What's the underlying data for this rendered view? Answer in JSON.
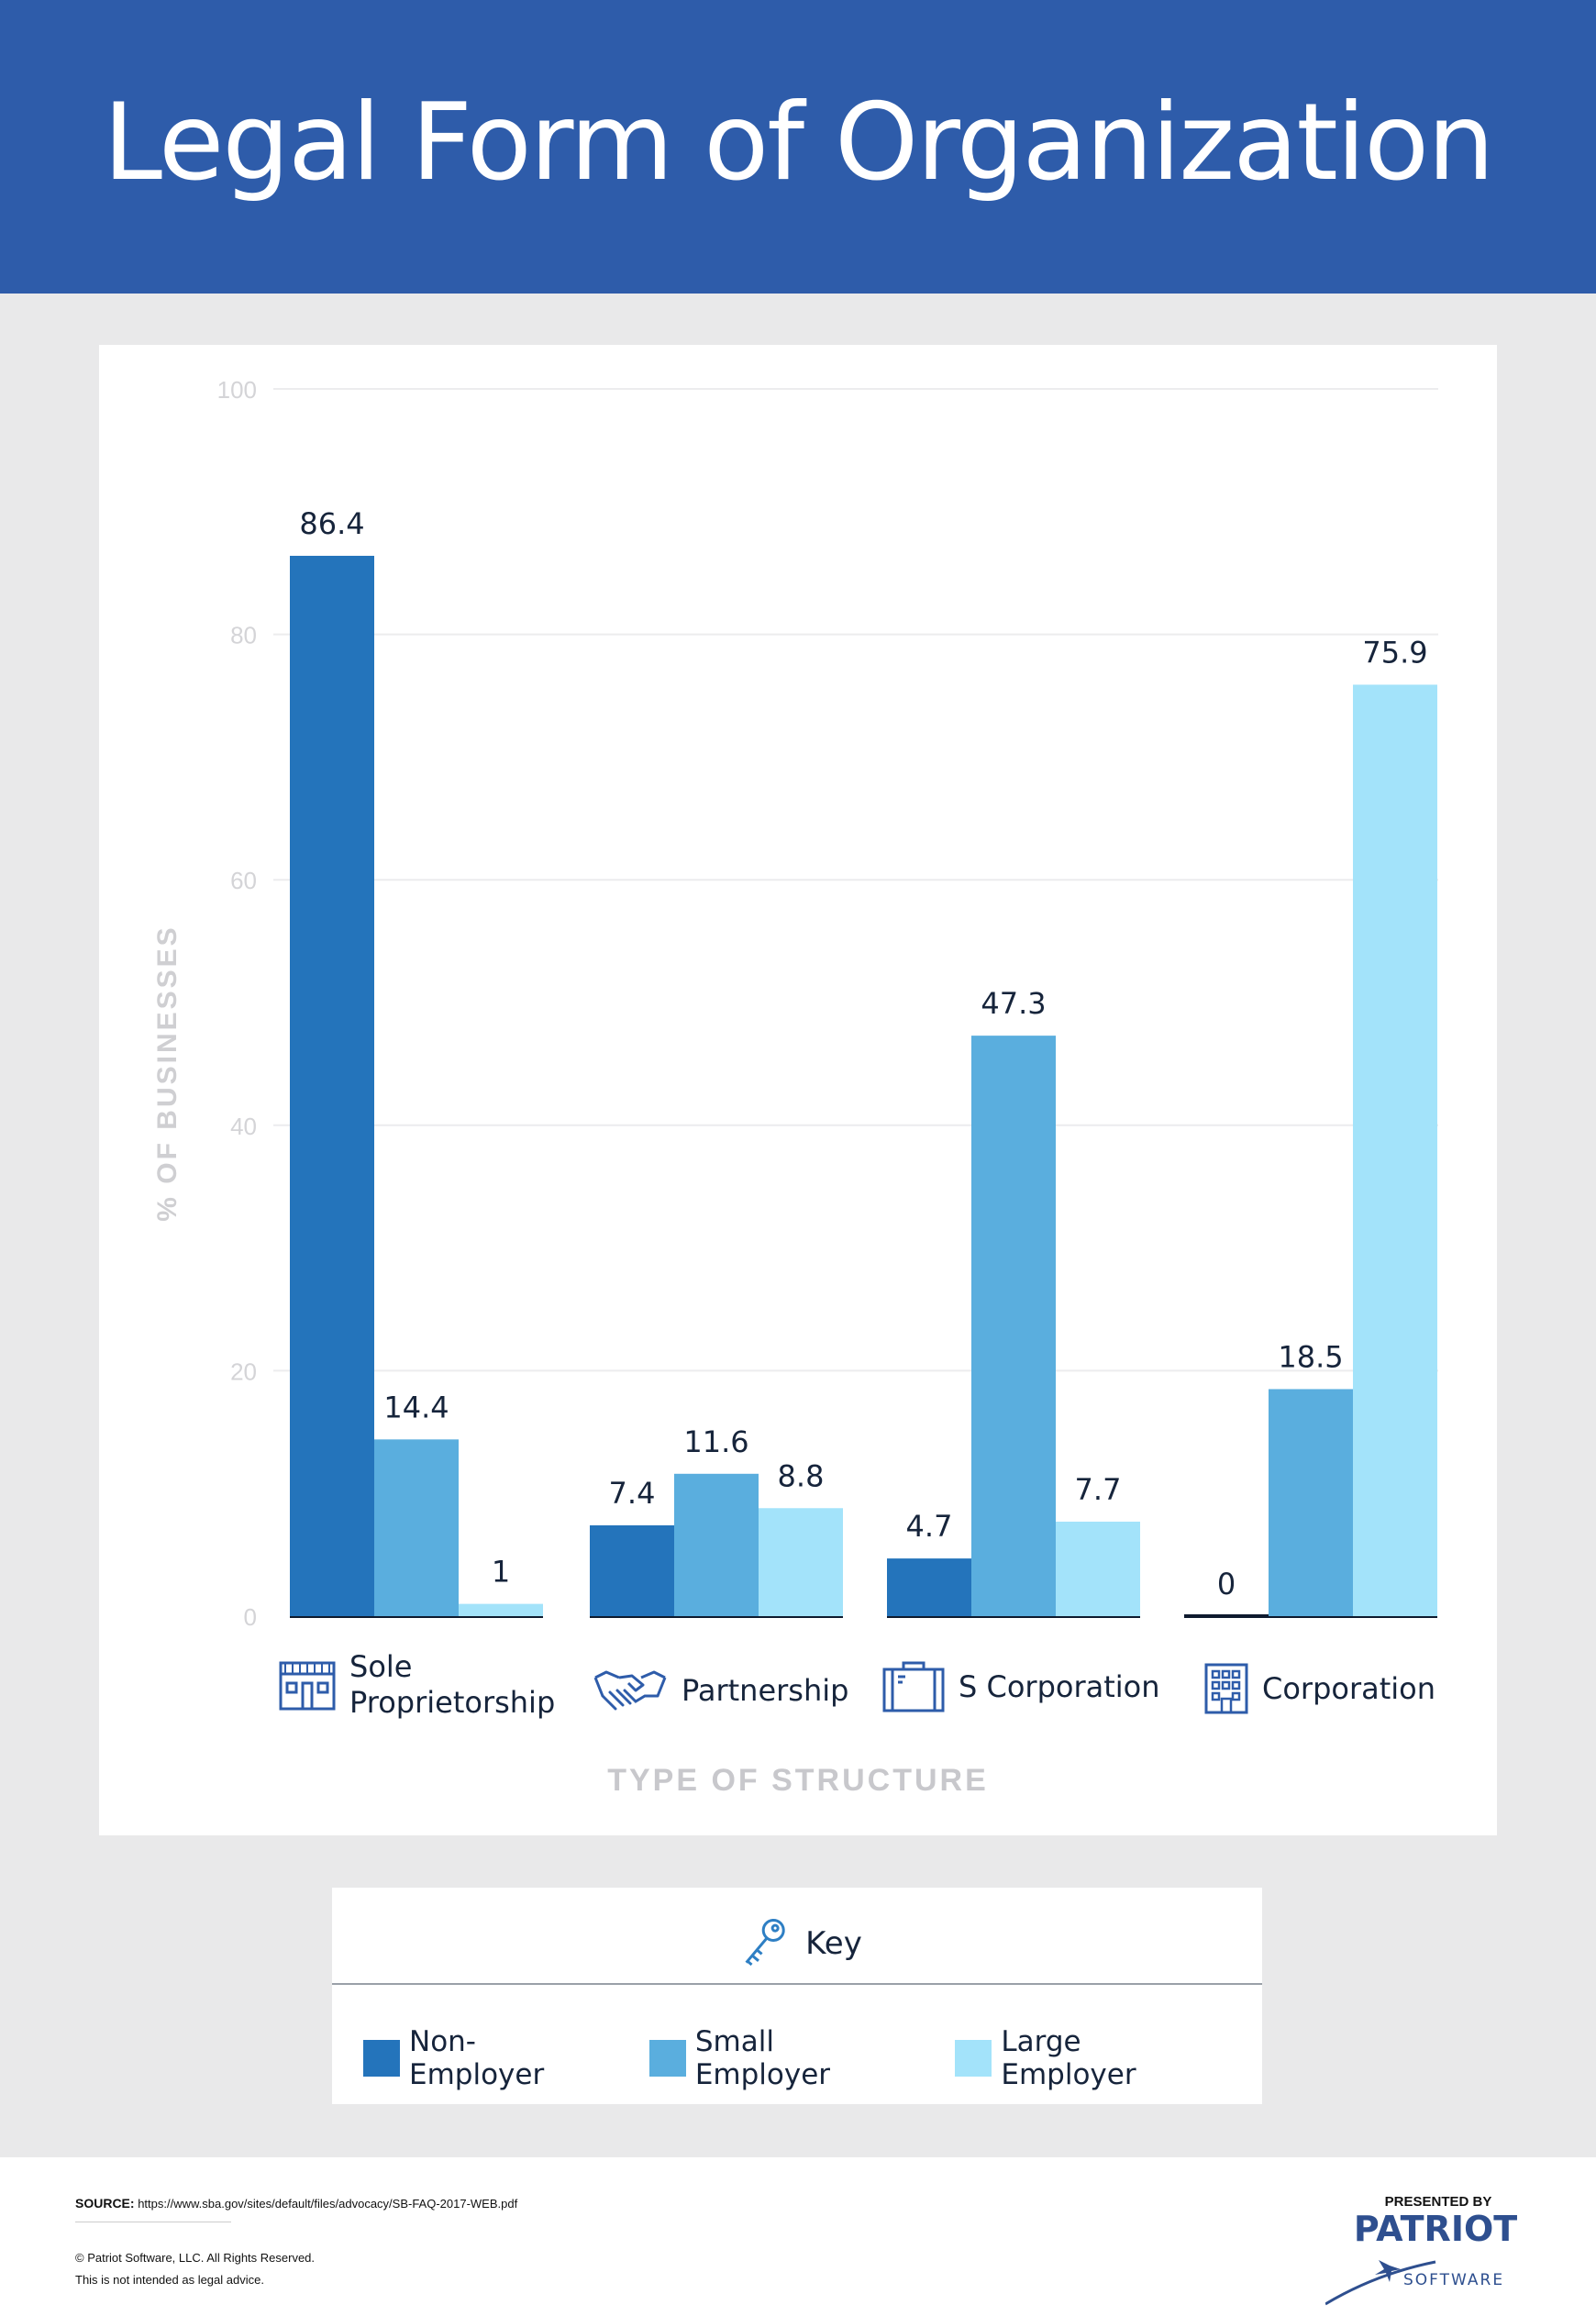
{
  "header": {
    "title": "Legal Form of Organization"
  },
  "colors": {
    "non_employer": "#2474bb",
    "small_employer": "#5aaede",
    "large_employer": "#a3e3fa",
    "header_bg": "#2e5caa"
  },
  "chart_data": {
    "type": "bar",
    "title": "Legal Form of Organization",
    "xlabel": "TYPE OF STRUCTURE",
    "ylabel": "% OF BUSINESSES",
    "ylim": [
      0,
      100
    ],
    "yticks": [
      0,
      20,
      40,
      60,
      80,
      100
    ],
    "grid": true,
    "legend_placement": "bottom",
    "categories": [
      "Sole Proprietorship",
      "Partnership",
      "S Corporation",
      "Corporation"
    ],
    "category_icons": [
      "storefront-icon",
      "handshake-icon",
      "briefcase-icon",
      "office-building-icon"
    ],
    "series": [
      {
        "name": "Non-Employer",
        "values": [
          86.4,
          7.4,
          4.7,
          0
        ]
      },
      {
        "name": "Small Employer",
        "values": [
          14.4,
          11.6,
          47.3,
          18.5
        ]
      },
      {
        "name": "Large Employer",
        "values": [
          1,
          8.8,
          7.7,
          75.9
        ]
      }
    ]
  },
  "key": {
    "title": "Key",
    "icon": "key-icon",
    "items": [
      {
        "label": "Non-Employer",
        "color": "#2474bb"
      },
      {
        "label": "Small Employer",
        "color": "#5aaede"
      },
      {
        "label": "Large Employer",
        "color": "#a3e3fa"
      }
    ]
  },
  "footer": {
    "source_label": "SOURCE:",
    "source_url": "https://www.sba.gov/sites/default/files/advocacy/SB-FAQ-2017-WEB.pdf",
    "copyright": "© Patriot Software, LLC. All Rights Reserved.",
    "disclaimer": "This is not intended as legal advice.",
    "presented_by": "PRESENTED BY",
    "brand": "PATRIOT",
    "brand_sub": "SOFTWARE"
  }
}
